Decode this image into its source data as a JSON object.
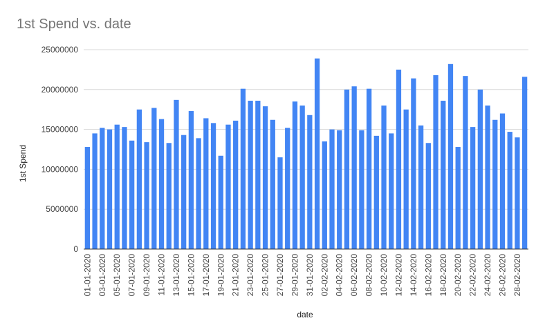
{
  "chart_data": {
    "type": "bar",
    "title": "1st Spend vs. date",
    "xlabel": "date",
    "ylabel": "1st Spend",
    "ylim": [
      0,
      25000000
    ],
    "yticks": [
      0,
      5000000,
      10000000,
      15000000,
      20000000,
      25000000
    ],
    "ytick_labels": [
      "0",
      "5000000",
      "10000000",
      "15000000",
      "20000000",
      "25000000"
    ],
    "grid": true,
    "bar_color": "#4285f4",
    "categories": [
      "01-01-2020",
      "02-01-2020",
      "03-01-2020",
      "04-01-2020",
      "05-01-2020",
      "06-01-2020",
      "07-01-2020",
      "08-01-2020",
      "09-01-2020",
      "10-01-2020",
      "11-01-2020",
      "12-01-2020",
      "13-01-2020",
      "14-01-2020",
      "15-01-2020",
      "16-01-2020",
      "17-01-2020",
      "18-01-2020",
      "19-01-2020",
      "20-01-2020",
      "21-01-2020",
      "22-01-2020",
      "23-01-2020",
      "24-01-2020",
      "25-01-2020",
      "26-01-2020",
      "27-01-2020",
      "28-01-2020",
      "29-01-2020",
      "30-01-2020",
      "31-01-2020",
      "01-02-2020",
      "02-02-2020",
      "03-02-2020",
      "04-02-2020",
      "05-02-2020",
      "06-02-2020",
      "07-02-2020",
      "08-02-2020",
      "09-02-2020",
      "10-02-2020",
      "11-02-2020",
      "12-02-2020",
      "13-02-2020",
      "14-02-2020",
      "15-02-2020",
      "16-02-2020",
      "17-02-2020",
      "18-02-2020",
      "19-02-2020",
      "20-02-2020",
      "21-02-2020",
      "22-02-2020",
      "23-02-2020",
      "24-02-2020",
      "25-02-2020",
      "26-02-2020",
      "27-02-2020",
      "28-02-2020",
      "29-02-2020"
    ],
    "visible_tick_labels": [
      "01-01-2020",
      "03-01-2020",
      "05-01-2020",
      "07-01-2020",
      "09-01-2020",
      "11-01-2020",
      "13-01-2020",
      "15-01-2020",
      "17-01-2020",
      "19-01-2020",
      "21-01-2020",
      "23-01-2020",
      "25-01-2020",
      "27-01-2020",
      "29-01-2020",
      "31-01-2020",
      "02-02-2020",
      "04-02-2020",
      "06-02-2020",
      "08-02-2020",
      "10-02-2020",
      "12-02-2020",
      "14-02-2020",
      "16-02-2020",
      "18-02-2020",
      "20-02-2020",
      "22-02-2020",
      "24-02-2020",
      "26-02-2020",
      "28-02-2020"
    ],
    "values": [
      12800000,
      14500000,
      15200000,
      15000000,
      15600000,
      15300000,
      13600000,
      17500000,
      13400000,
      17700000,
      16300000,
      13300000,
      18700000,
      14300000,
      17300000,
      13900000,
      16400000,
      15800000,
      11700000,
      15600000,
      16100000,
      20100000,
      18600000,
      18600000,
      17900000,
      16200000,
      11500000,
      15200000,
      18500000,
      18000000,
      16800000,
      23900000,
      13500000,
      15000000,
      14900000,
      20000000,
      20400000,
      14900000,
      20100000,
      14200000,
      18000000,
      14500000,
      22500000,
      17500000,
      21400000,
      15500000,
      13300000,
      21800000,
      18600000,
      23200000,
      12800000,
      21700000,
      15300000,
      20000000,
      18000000,
      16200000,
      17000000,
      14700000,
      14000000,
      21600000
    ]
  }
}
